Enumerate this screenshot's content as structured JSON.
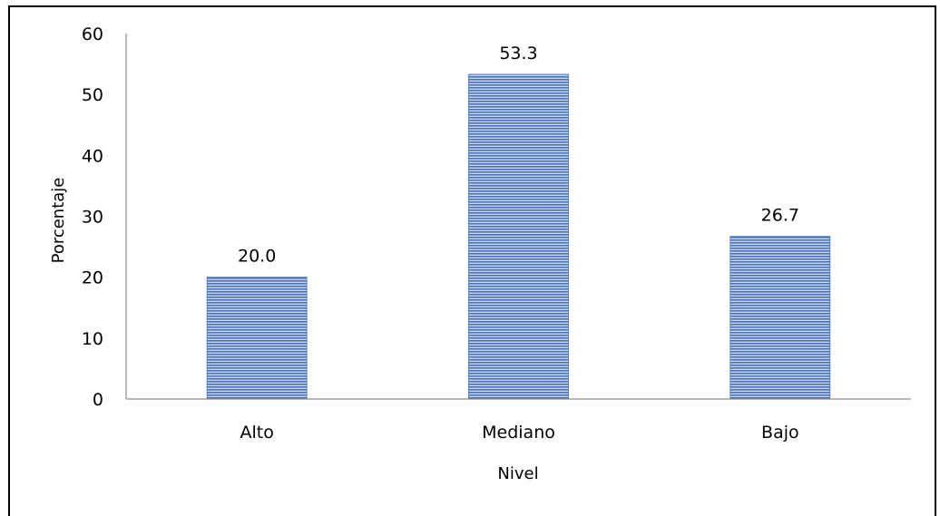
{
  "chart_data": {
    "type": "bar",
    "title": "",
    "xlabel": "Nivel",
    "ylabel": "Porcentaje",
    "categories": [
      "Alto",
      "Mediano",
      "Bajo"
    ],
    "values": [
      20.0,
      53.3,
      26.7
    ],
    "data_labels": [
      "20.0",
      "53.3",
      "26.7"
    ],
    "ylim": [
      0,
      60
    ],
    "yticks": [
      "0",
      "10",
      "20",
      "30",
      "40",
      "50",
      "60"
    ],
    "grid": false,
    "legend": "none",
    "bar_color": "#4a72b8",
    "bar_stripe_color": "#c9d6ee"
  }
}
